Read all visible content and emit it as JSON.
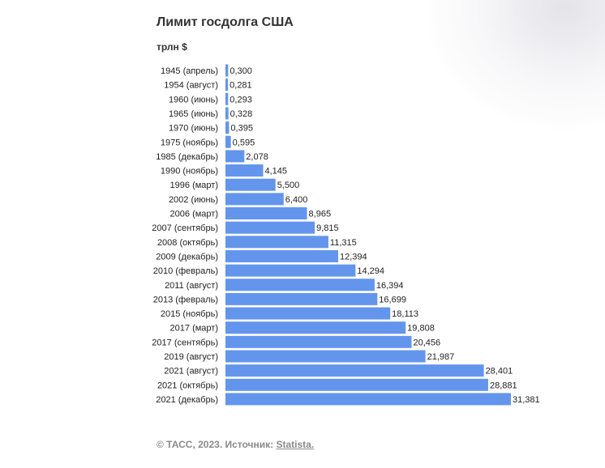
{
  "chart_data": {
    "type": "bar",
    "orientation": "horizontal",
    "title": "Лимит госдолга США",
    "unit_label": "трлн $",
    "bar_color": "#6495ed",
    "categories": [
      "1945 (апрель)",
      "1954 (август)",
      "1960 (июнь)",
      "1965 (июнь)",
      "1970 (июнь)",
      "1975 (ноябрь)",
      "1985 (декабрь)",
      "1990 (ноябрь)",
      "1996 (март)",
      "2002 (июнь)",
      "2006 (март)",
      "2007 (сентябрь)",
      "2008 (октябрь)",
      "2009 (декабрь)",
      "2010 (февраль)",
      "2011 (август)",
      "2013 (февраль)",
      "2015 (ноябрь)",
      "2017 (март)",
      "2017 (сентябрь)",
      "2019 (август)",
      "2021 (август)",
      "2021 (октябрь)",
      "2021 (декабрь)"
    ],
    "values": [
      0.3,
      0.281,
      0.293,
      0.328,
      0.395,
      0.595,
      2.078,
      4.145,
      5.5,
      6.4,
      8.965,
      9.815,
      11.315,
      12.394,
      14.294,
      16.394,
      16.699,
      18.113,
      19.808,
      20.456,
      21.987,
      28.401,
      28.881,
      31.381
    ],
    "value_labels": [
      "0,300",
      "0,281",
      "0,293",
      "0,328",
      "0,395",
      "0,595",
      "2,078",
      "4,145",
      "5,500",
      "6,400",
      "8,965",
      "9,815",
      "11,315",
      "12,394",
      "14,294",
      "16,394",
      "16,699",
      "18,113",
      "19,808",
      "20,456",
      "21,987",
      "28,401",
      "28,881",
      "31,381"
    ],
    "xlim": [
      0,
      31.381
    ],
    "grid": false,
    "legend": "none"
  },
  "footer": {
    "text": "© ТАСС, 2023. Источник: ",
    "link": "Statista."
  }
}
